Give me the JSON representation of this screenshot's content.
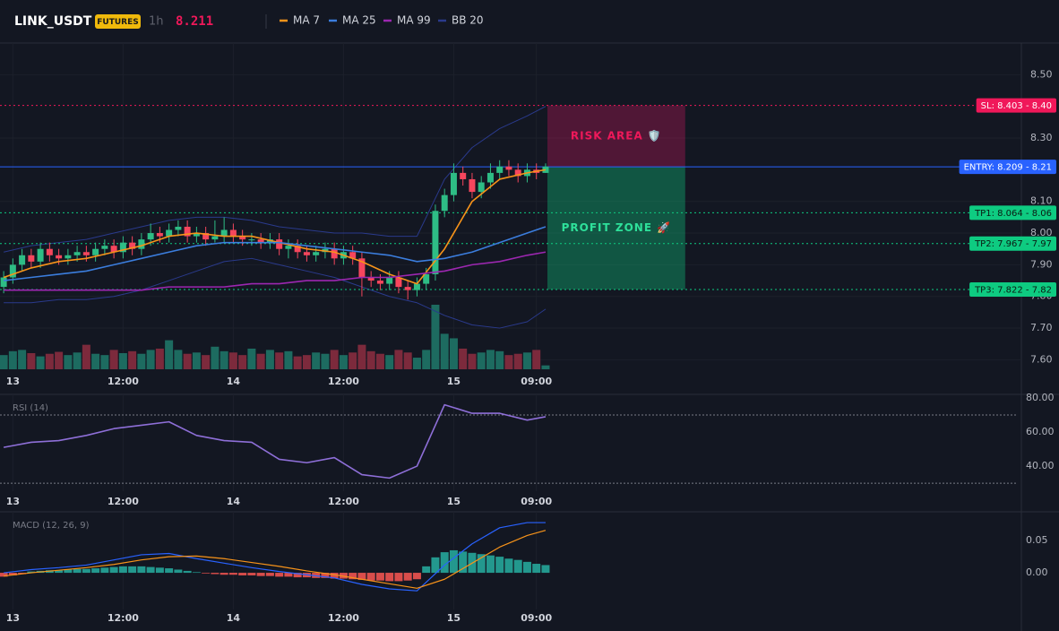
{
  "chart_data": {
    "type": "candlestick",
    "title": "LINK_USDT",
    "badge": "FUTURES",
    "interval": "1h",
    "last_price": 8.211,
    "up_color": "#2ebd85",
    "down_color": "#f6465d",
    "volume_up_color": "#1d6b60",
    "volume_down_color": "#7c2a3c",
    "open": [
      7.83,
      7.86,
      7.9,
      7.93,
      7.91,
      7.95,
      7.93,
      7.92,
      7.93,
      7.94,
      7.93,
      7.95,
      7.96,
      7.94,
      7.97,
      7.95,
      7.98,
      8.0,
      7.99,
      8.01,
      8.02,
      7.99,
      8.0,
      7.98,
      7.99,
      8.01,
      7.99,
      7.98,
      7.98,
      7.97,
      7.98,
      7.95,
      7.96,
      7.94,
      7.93,
      7.94,
      7.95,
      7.92,
      7.94,
      7.92,
      7.86,
      7.85,
      7.84,
      7.86,
      7.83,
      7.82,
      7.84,
      7.87,
      8.07,
      8.12,
      8.19,
      8.17,
      8.13,
      8.16,
      8.19,
      8.21,
      8.2,
      8.18,
      8.2,
      8.19
    ],
    "high": [
      7.88,
      7.92,
      7.95,
      7.95,
      7.97,
      7.97,
      7.95,
      7.95,
      7.96,
      7.96,
      7.97,
      7.98,
      7.98,
      7.99,
      7.99,
      8.0,
      8.03,
      8.02,
      8.03,
      8.04,
      8.04,
      8.02,
      8.02,
      8.04,
      8.05,
      8.03,
      8.01,
      8.0,
      8.0,
      8.0,
      8.0,
      7.98,
      7.98,
      7.96,
      7.96,
      7.97,
      7.97,
      7.96,
      7.96,
      7.94,
      7.88,
      7.87,
      7.88,
      7.88,
      7.85,
      7.86,
      7.89,
      8.09,
      8.14,
      8.22,
      8.21,
      8.19,
      8.18,
      8.22,
      8.23,
      8.23,
      8.22,
      8.22,
      8.22,
      8.22
    ],
    "low": [
      7.81,
      7.84,
      7.88,
      7.89,
      7.89,
      7.91,
      7.9,
      7.9,
      7.91,
      7.91,
      7.91,
      7.93,
      7.92,
      7.92,
      7.93,
      7.93,
      7.96,
      7.97,
      7.97,
      7.99,
      7.97,
      7.97,
      7.96,
      7.97,
      7.97,
      7.97,
      7.96,
      7.96,
      7.95,
      7.95,
      7.93,
      7.92,
      7.92,
      7.91,
      7.91,
      7.92,
      7.9,
      7.9,
      7.9,
      7.8,
      7.83,
      7.82,
      7.82,
      7.81,
      7.79,
      7.8,
      7.82,
      7.85,
      8.05,
      8.1,
      8.15,
      8.11,
      8.11,
      8.14,
      8.17,
      8.18,
      8.16,
      8.16,
      8.17,
      8.19
    ],
    "close": [
      7.86,
      7.9,
      7.93,
      7.91,
      7.95,
      7.93,
      7.92,
      7.93,
      7.94,
      7.93,
      7.95,
      7.96,
      7.94,
      7.97,
      7.95,
      7.98,
      8.0,
      7.99,
      8.01,
      8.02,
      7.99,
      8.0,
      7.98,
      7.99,
      8.01,
      7.99,
      7.98,
      7.98,
      7.97,
      7.98,
      7.95,
      7.96,
      7.94,
      7.93,
      7.94,
      7.95,
      7.92,
      7.94,
      7.92,
      7.86,
      7.85,
      7.84,
      7.86,
      7.83,
      7.82,
      7.84,
      7.87,
      8.07,
      8.12,
      8.19,
      8.17,
      8.13,
      8.16,
      8.19,
      8.21,
      8.2,
      8.18,
      8.2,
      8.19,
      8.21
    ],
    "volume": [
      22,
      28,
      30,
      25,
      20,
      24,
      27,
      22,
      26,
      38,
      24,
      22,
      30,
      25,
      28,
      24,
      30,
      32,
      45,
      30,
      24,
      26,
      22,
      35,
      28,
      26,
      22,
      32,
      24,
      30,
      26,
      28,
      20,
      22,
      26,
      24,
      30,
      22,
      26,
      38,
      28,
      24,
      22,
      30,
      26,
      18,
      30,
      100,
      55,
      48,
      32,
      24,
      26,
      30,
      28,
      22,
      24,
      26,
      30,
      6
    ],
    "volume_lim": [
      0,
      100
    ],
    "xlim": [
      -0.4,
      110.8
    ],
    "xticks": [
      {
        "value": 1,
        "label": "13"
      },
      {
        "value": 13,
        "label": "12:00"
      },
      {
        "value": 25,
        "label": "14"
      },
      {
        "value": 37,
        "label": "12:00"
      },
      {
        "value": 49,
        "label": "15"
      },
      {
        "value": 58,
        "label": "09:00"
      }
    ],
    "ylim": [
      7.57,
      8.6
    ],
    "yticks": [
      {
        "value": 8.5,
        "label": "8.50"
      },
      {
        "value": 8.3,
        "label": "8.30"
      },
      {
        "value": 8.1,
        "label": "8.10"
      },
      {
        "value": 8.0,
        "label": "8.00"
      },
      {
        "value": 7.9,
        "label": "7.90"
      },
      {
        "value": 7.8,
        "label": "7.80"
      },
      {
        "value": 7.7,
        "label": "7.70"
      },
      {
        "value": 7.6,
        "label": "7.60"
      }
    ],
    "grid": true,
    "indicator_x": [
      0,
      3,
      6,
      9,
      12,
      15,
      18,
      21,
      24,
      27,
      30,
      33,
      36,
      39,
      42,
      45,
      48,
      51,
      54,
      57,
      59
    ],
    "series": [
      {
        "name": "MA 7",
        "color": "#f7931a",
        "values": [
          7.86,
          7.89,
          7.91,
          7.92,
          7.94,
          7.96,
          7.99,
          8.0,
          7.99,
          7.99,
          7.97,
          7.95,
          7.94,
          7.91,
          7.87,
          7.84,
          7.95,
          8.1,
          8.17,
          8.19,
          8.2
        ]
      },
      {
        "name": "MA 25",
        "color": "#3b7ddd",
        "values": [
          7.85,
          7.86,
          7.87,
          7.88,
          7.9,
          7.92,
          7.94,
          7.96,
          7.97,
          7.97,
          7.97,
          7.96,
          7.95,
          7.94,
          7.93,
          7.91,
          7.92,
          7.94,
          7.97,
          8.0,
          8.02
        ]
      },
      {
        "name": "MA 99",
        "color": "#9c27b0",
        "values": [
          7.82,
          7.82,
          7.82,
          7.82,
          7.82,
          7.82,
          7.83,
          7.83,
          7.83,
          7.84,
          7.84,
          7.85,
          7.85,
          7.86,
          7.86,
          7.87,
          7.88,
          7.9,
          7.91,
          7.93,
          7.94
        ]
      },
      {
        "name": "BB 20",
        "color": "#2a3a8c",
        "upper": [
          7.94,
          7.96,
          7.97,
          7.98,
          8.0,
          8.02,
          8.04,
          8.05,
          8.05,
          8.04,
          8.02,
          8.01,
          8.0,
          8.0,
          7.99,
          7.99,
          8.17,
          8.27,
          8.33,
          8.37,
          8.4
        ],
        "lower": [
          7.78,
          7.78,
          7.79,
          7.79,
          7.8,
          7.82,
          7.85,
          7.88,
          7.91,
          7.92,
          7.9,
          7.88,
          7.86,
          7.83,
          7.8,
          7.78,
          7.74,
          7.71,
          7.7,
          7.72,
          7.76
        ]
      }
    ],
    "levels": [
      {
        "label": "SL: 8.403 - 8.40",
        "value": 8.403,
        "color": "#f0185a",
        "text_color": "#ffffff",
        "style": "dotted"
      },
      {
        "label": "ENTRY: 8.209 - 8.21",
        "value": 8.209,
        "color": "#2962ff",
        "text_color": "#ffffff",
        "style": "solid"
      },
      {
        "label": "TP1: 8.064 - 8.06",
        "value": 8.064,
        "color": "#0ecb81",
        "text_color": "#0b1a12",
        "style": "dotted"
      },
      {
        "label": "TP2: 7.967 - 7.97",
        "value": 7.967,
        "color": "#0ecb81",
        "text_color": "#0b1a12",
        "style": "dotted"
      },
      {
        "label": "TP3: 7.822 - 7.82",
        "value": 7.822,
        "color": "#0ecb81",
        "text_color": "#0b1a12",
        "style": "dotted"
      }
    ],
    "zones": [
      {
        "label": "RISK AREA 🛡️",
        "range": [
          8.209,
          8.403
        ],
        "x_range": [
          59.2,
          74.2
        ],
        "color": "#c2185b",
        "text_color": "#f0185a"
      },
      {
        "label": "PROFIT ZONE 🚀",
        "range": [
          7.822,
          8.209
        ],
        "x_range": [
          59.2,
          74.2
        ],
        "color": "#0ecb81",
        "text_color": "#2ee09a"
      }
    ],
    "rsi": {
      "label": "RSI (14)",
      "color": "#8e6fd8",
      "values": [
        51,
        54,
        55,
        58,
        62,
        64,
        66,
        58,
        55,
        54,
        44,
        42,
        45,
        35,
        33,
        40,
        76,
        71,
        71,
        67,
        69
      ],
      "ylim": [
        25.3,
        82.1
      ],
      "yticks": [
        {
          "value": 80,
          "label": "80.00"
        },
        {
          "value": 60,
          "label": "60.00"
        },
        {
          "value": 40,
          "label": "40.00"
        }
      ],
      "bands": [
        70,
        30
      ]
    },
    "macd": {
      "label": "MACD (12, 26, 9)",
      "macd_color": "#2962ff",
      "signal_color": "#f7931a",
      "up_color": "#26a69a",
      "down_color": "#ef5350",
      "macd": [
        0.0,
        0.005,
        0.008,
        0.012,
        0.02,
        0.028,
        0.03,
        0.022,
        0.015,
        0.008,
        0.002,
        -0.003,
        -0.008,
        -0.018,
        -0.025,
        -0.028,
        0.012,
        0.045,
        0.07,
        0.078,
        0.078
      ],
      "signal": [
        -0.005,
        0.0,
        0.004,
        0.008,
        0.013,
        0.02,
        0.025,
        0.026,
        0.022,
        0.016,
        0.01,
        0.003,
        -0.003,
        -0.01,
        -0.017,
        -0.024,
        -0.01,
        0.015,
        0.04,
        0.058,
        0.066
      ],
      "histogram": [
        -0.006,
        -0.004,
        -0.002,
        0.002,
        0.003,
        0.004,
        0.004,
        0.005,
        0.006,
        0.006,
        0.007,
        0.008,
        0.009,
        0.01,
        0.01,
        0.01,
        0.009,
        0.008,
        0.007,
        0.005,
        0.003,
        0.001,
        -0.001,
        -0.002,
        -0.003,
        -0.003,
        -0.004,
        -0.004,
        -0.005,
        -0.005,
        -0.006,
        -0.006,
        -0.007,
        -0.007,
        -0.008,
        -0.008,
        -0.009,
        -0.009,
        -0.01,
        -0.011,
        -0.012,
        -0.012,
        -0.013,
        -0.013,
        -0.012,
        -0.01,
        0.01,
        0.024,
        0.032,
        0.035,
        0.033,
        0.031,
        0.029,
        0.027,
        0.025,
        0.022,
        0.02,
        0.017,
        0.014,
        0.012
      ],
      "ylim": [
        -0.057,
        0.092
      ],
      "yticks": [
        {
          "value": 0.05,
          "label": "0.05"
        },
        {
          "value": 0,
          "label": "0.00"
        }
      ]
    }
  }
}
